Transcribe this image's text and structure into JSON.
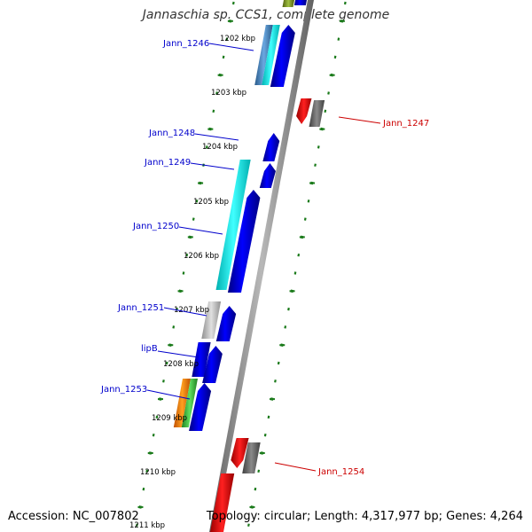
{
  "title": "Jannaschia sp. CCS1, complete genome",
  "footer": {
    "accession": "Accession: NC_007802",
    "topology": "Topology: circular; Length: 4,317,977 bp; Genes: 4,264"
  },
  "colors": {
    "forward_label": "#0000cc",
    "reverse_label": "#cc0000",
    "tick": "#1a7a1a",
    "backbone": "#808080"
  },
  "kbp_labels": [
    "1202 kbp",
    "1203 kbp",
    "1204 kbp",
    "1205 kbp",
    "1206 kbp",
    "1207 kbp",
    "1208 kbp",
    "1209 kbp",
    "1210 kbp",
    "1211 kbp"
  ],
  "gene_labels": [
    {
      "name": "Jann_1246",
      "strand": "forward"
    },
    {
      "name": "Jann_1247",
      "strand": "reverse"
    },
    {
      "name": "Jann_1248",
      "strand": "forward"
    },
    {
      "name": "Jann_1249",
      "strand": "forward"
    },
    {
      "name": "Jann_1250",
      "strand": "forward"
    },
    {
      "name": "Jann_1251",
      "strand": "forward"
    },
    {
      "name": "lipB",
      "strand": "forward"
    },
    {
      "name": "Jann_1253",
      "strand": "forward"
    },
    {
      "name": "Jann_1254",
      "strand": "reverse"
    }
  ]
}
